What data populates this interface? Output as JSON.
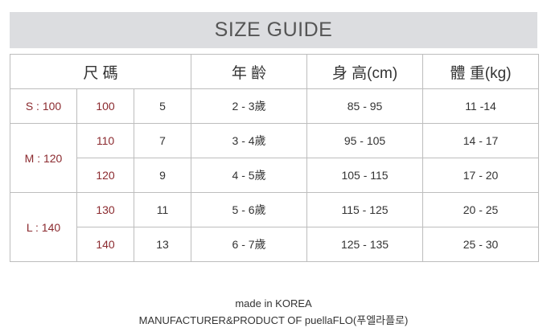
{
  "title": "SIZE GUIDE",
  "table": {
    "headers": [
      "尺 碼",
      "年 齡",
      "身 高(cm)",
      "體 重(kg)"
    ],
    "groups": [
      {
        "label": "S : 100",
        "rows": [
          {
            "size": "100",
            "num": "5",
            "age": "2 - 3歲",
            "height": "85 - 95",
            "weight": "11 -14"
          }
        ]
      },
      {
        "label": "M : 120",
        "rows": [
          {
            "size": "110",
            "num": "7",
            "age": "3 - 4歲",
            "height": "95 - 105",
            "weight": "14 - 17"
          },
          {
            "size": "120",
            "num": "9",
            "age": "4 - 5歲",
            "height": "105 - 115",
            "weight": "17 - 20"
          }
        ]
      },
      {
        "label": "L : 140",
        "rows": [
          {
            "size": "130",
            "num": "11",
            "age": "5 - 6歲",
            "height": "115 - 125",
            "weight": "20 - 25"
          },
          {
            "size": "140",
            "num": "13",
            "age": "6 - 7歲",
            "height": "125 - 135",
            "weight": "25 - 30"
          }
        ]
      }
    ]
  },
  "footer": {
    "line1": "made in KOREA",
    "line2": "MANUFACTURER&PRODUCT OF puellaFLO(푸엘라플로)"
  },
  "colors": {
    "accent_red": "#8b2a2f",
    "title_bg": "#dcdde0"
  }
}
